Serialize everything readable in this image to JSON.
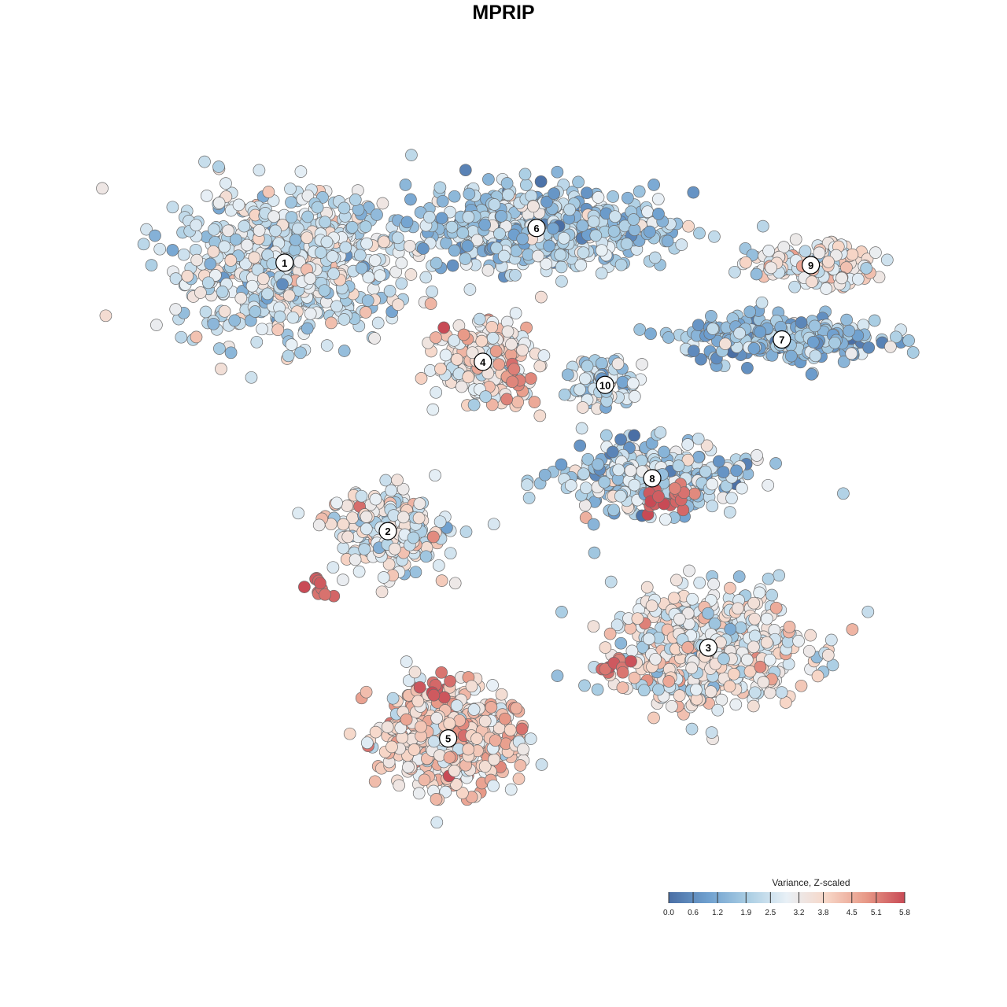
{
  "chart_data": {
    "type": "scatter",
    "title": "MPRIP",
    "xlabel": "",
    "ylabel": "",
    "grid": false,
    "legend": {
      "title": "Variance, Z-scaled",
      "position": "bottom-right",
      "range": [
        0.0,
        5.8
      ],
      "ticks": [
        "0.0",
        "0.6",
        "1.2",
        "1.9",
        "2.5",
        "3.2",
        "3.8",
        "4.5",
        "5.1",
        "5.8"
      ],
      "colors": [
        "#4a6fa5",
        "#6fa0cf",
        "#a9cde3",
        "#e8f0f6",
        "#f7d7c8",
        "#e89a88",
        "#c84a55"
      ]
    },
    "clusters": [
      {
        "label": "1",
        "x": -2.65,
        "y": 2.63,
        "mean_value": 2.6,
        "spread": [
          1.45,
          0.95
        ],
        "n": 700
      },
      {
        "label": "2",
        "x": -1.4,
        "y": -0.62,
        "mean_value": 2.9,
        "spread": [
          0.8,
          0.55
        ],
        "n": 230
      },
      {
        "label": "3",
        "x": 2.48,
        "y": -2.03,
        "mean_value": 3.1,
        "spread": [
          1.3,
          0.8
        ],
        "n": 520
      },
      {
        "label": "4",
        "x": -0.25,
        "y": 1.43,
        "mean_value": 3.4,
        "spread": [
          0.6,
          0.48
        ],
        "n": 300
      },
      {
        "label": "5",
        "x": -0.67,
        "y": -3.13,
        "mean_value": 3.8,
        "spread": [
          0.9,
          0.68
        ],
        "n": 520
      },
      {
        "label": "6",
        "x": 0.4,
        "y": 3.05,
        "mean_value": 2.0,
        "spread": [
          1.7,
          0.55
        ],
        "n": 560
      },
      {
        "label": "7",
        "x": 3.37,
        "y": 1.7,
        "mean_value": 1.6,
        "spread": [
          1.3,
          0.3
        ],
        "n": 300
      },
      {
        "label": "8",
        "x": 1.8,
        "y": 0.02,
        "mean_value": 2.1,
        "spread": [
          1.2,
          0.45
        ],
        "n": 340
      },
      {
        "label": "9",
        "x": 3.72,
        "y": 2.6,
        "mean_value": 3.2,
        "spread": [
          0.8,
          0.28
        ],
        "n": 150
      },
      {
        "label": "10",
        "x": 1.23,
        "y": 1.15,
        "mean_value": 2.4,
        "spread": [
          0.4,
          0.4
        ],
        "n": 80
      }
    ],
    "hotspots": [
      {
        "near": "5",
        "x": -0.85,
        "y": -2.5,
        "value": 5.6
      },
      {
        "near": "3",
        "x": 1.93,
        "y": -0.3,
        "value": 5.7
      },
      {
        "near": "3",
        "x": 1.4,
        "y": -2.2,
        "value": 5.3
      },
      {
        "near": "2",
        "x": -2.28,
        "y": -1.3,
        "value": 5.5
      },
      {
        "near": "8",
        "x": 2.15,
        "y": -0.13,
        "value": 5.4
      },
      {
        "near": "4",
        "x": 0.1,
        "y": 1.25,
        "value": 5.1
      }
    ]
  }
}
